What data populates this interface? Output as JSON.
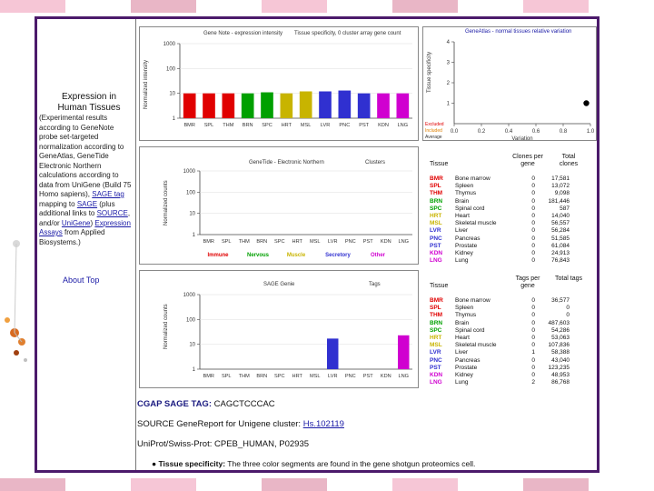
{
  "colors": {
    "frame": "#4b1a6b",
    "band": [
      "#f6c6d6",
      "#ffffff",
      "#e9b6c6",
      "#ffffff"
    ],
    "link": "#1a1aa6"
  },
  "sidebar": {
    "title": "Expression in Human Tissues",
    "text_1": "(Experimental results according to GeneNote probe set-targeted ",
    "text_2": "normalization according to GeneAtlas, ",
    "text_3": "GeneTide Electronic Northern calculations according to data from UniGene (Build 75 Homo sapiens), ",
    "link_sage": "SAGE tag",
    "text_4": " mapping to ",
    "link_sage2": "SAGE",
    "text_5": " (plus additional links to ",
    "link_source": "SOURCE",
    "text_6": ", and/or ",
    "link_unigene": "UniGene",
    "text_7": ") ",
    "link_exp": "Expression Assays",
    "text_8": " from Applied Biosystems.)",
    "about_link": "About Top"
  },
  "panel1": {
    "title": "Gene Note - expression intensity",
    "subtitle": "Tissue specificity, 0 cluster array gene count",
    "ylabel": "Normalized intensity",
    "yticks": [
      "1000",
      "100",
      "10",
      "1"
    ],
    "categories": [
      "BMR",
      "SPL",
      "THM",
      "BRN",
      "SPC",
      "HRT",
      "MSL",
      "LVR",
      "PNC",
      "PST",
      "KDN",
      "LNG"
    ]
  },
  "panel1b": {
    "title": "GeneAtlas - normal tissues relative variation",
    "ylabel": "Tissue specificity",
    "yticks": [
      "4",
      "3",
      "2",
      "1"
    ],
    "xticks": [
      "0.0",
      "0.2",
      "0.4",
      "0.6",
      "0.8",
      "1.0"
    ],
    "xlabel": "Variation",
    "legend": [
      "Excluded",
      "Included",
      "Average"
    ]
  },
  "panel2": {
    "title": "GeneTide - Electronic Northern",
    "subtitle": "Clusters",
    "ylabel": "Normalized counts",
    "yticks": [
      "1000",
      "100",
      "10",
      "1"
    ],
    "categories": [
      "BMR",
      "SPL",
      "THM",
      "BRN",
      "SPC",
      "HRT",
      "MSL",
      "LVR",
      "PNC",
      "PST",
      "KDN",
      "LNG"
    ],
    "groups": [
      {
        "label": "Immune",
        "color": "#e00000"
      },
      {
        "label": "Nervous",
        "color": "#00a000"
      },
      {
        "label": "Muscle",
        "color": "#c8b400"
      },
      {
        "label": "Secretory",
        "color": "#3030d0"
      },
      {
        "label": "Other",
        "color": "#d000d0"
      }
    ]
  },
  "table1": {
    "col_tissue": "Tissue",
    "col_clones": "Clones per gene",
    "col_total": "Total clones",
    "rows": [
      {
        "code": "BMR",
        "name": "Bone marrow",
        "v1": "0",
        "v2": "17,581",
        "color": "#e00000"
      },
      {
        "code": "SPL",
        "name": "Spleen",
        "v1": "0",
        "v2": "13,072",
        "color": "#e00000"
      },
      {
        "code": "THM",
        "name": "Thymus",
        "v1": "0",
        "v2": "9,098",
        "color": "#e00000"
      },
      {
        "code": "BRN",
        "name": "Brain",
        "v1": "0",
        "v2": "181,446",
        "color": "#00a000"
      },
      {
        "code": "SPC",
        "name": "Spinal cord",
        "v1": "0",
        "v2": "587",
        "color": "#00a000"
      },
      {
        "code": "HRT",
        "name": "Heart",
        "v1": "0",
        "v2": "14,040",
        "color": "#c8b400"
      },
      {
        "code": "MSL",
        "name": "Skeletal muscle",
        "v1": "0",
        "v2": "56,557",
        "color": "#c8b400"
      },
      {
        "code": "LVR",
        "name": "Liver",
        "v1": "0",
        "v2": "56,284",
        "color": "#3030d0"
      },
      {
        "code": "PNC",
        "name": "Pancreas",
        "v1": "0",
        "v2": "51,585",
        "color": "#3030d0"
      },
      {
        "code": "PST",
        "name": "Prostate",
        "v1": "0",
        "v2": "61,084",
        "color": "#3030d0"
      },
      {
        "code": "KDN",
        "name": "Kidney",
        "v1": "0",
        "v2": "24,913",
        "color": "#d000d0"
      },
      {
        "code": "LNG",
        "name": "Lung",
        "v1": "0",
        "v2": "76,843",
        "color": "#d000d0"
      }
    ]
  },
  "panel3": {
    "title": "SAGE Genie",
    "subtitle": "Tags",
    "ylabel": "Normalized counts",
    "yticks": [
      "1000",
      "100",
      "10",
      "1"
    ],
    "categories": [
      "BMR",
      "SPL",
      "THM",
      "BRN",
      "SPC",
      "HRT",
      "MSL",
      "LVR",
      "PNC",
      "PST",
      "KDN",
      "LNG"
    ]
  },
  "table2": {
    "col_tissue": "Tissue",
    "col_tags": "Tags per gene",
    "col_total": "Total tags",
    "rows": [
      {
        "code": "BMR",
        "name": "Bone marrow",
        "v1": "0",
        "v2": "36,577",
        "color": "#e00000"
      },
      {
        "code": "SPL",
        "name": "Spleen",
        "v1": "0",
        "v2": "0",
        "color": "#e00000"
      },
      {
        "code": "THM",
        "name": "Thymus",
        "v1": "0",
        "v2": "0",
        "color": "#e00000"
      },
      {
        "code": "BRN",
        "name": "Brain",
        "v1": "0",
        "v2": "487,603",
        "color": "#00a000"
      },
      {
        "code": "SPC",
        "name": "Spinal cord",
        "v1": "0",
        "v2": "54,286",
        "color": "#00a000"
      },
      {
        "code": "HRT",
        "name": "Heart",
        "v1": "0",
        "v2": "53,063",
        "color": "#c8b400"
      },
      {
        "code": "MSL",
        "name": "Skeletal muscle",
        "v1": "0",
        "v2": "107,836",
        "color": "#c8b400"
      },
      {
        "code": "LVR",
        "name": "Liver",
        "v1": "1",
        "v2": "58,388",
        "color": "#3030d0"
      },
      {
        "code": "PNC",
        "name": "Pancreas",
        "v1": "0",
        "v2": "43,040",
        "color": "#3030d0"
      },
      {
        "code": "PST",
        "name": "Prostate",
        "v1": "0",
        "v2": "123,235",
        "color": "#3030d0"
      },
      {
        "code": "KDN",
        "name": "Kidney",
        "v1": "0",
        "v2": "48,953",
        "color": "#d000d0"
      },
      {
        "code": "LNG",
        "name": "Lung",
        "v1": "2",
        "v2": "86,768",
        "color": "#d000d0"
      }
    ]
  },
  "bottom": {
    "sage_label": "CGAP SAGE TAG:",
    "sage_value": "CAGCTCCCAC",
    "source_label": "SOURCE GeneReport for Unigene cluster:",
    "source_link": "Hs.102119",
    "uniprot_label": "UniProt/Swiss-Prot:",
    "uniprot_value": "CPEB_HUMAN, P02935",
    "specificity_label": "Tissue specificity:",
    "specificity_text": "The three color segments are found in the gene shotgun proteomics cell."
  },
  "chart_data": [
    {
      "type": "bar",
      "title": "Gene Note - expression intensity",
      "ylabel": "Normalized intensity",
      "categories": [
        "BMR",
        "SPL",
        "THM",
        "BRN",
        "SPC",
        "HRT",
        "MSL",
        "LVR",
        "PNC",
        "PST",
        "KDN",
        "LNG"
      ],
      "values": [
        10,
        10,
        10,
        10,
        11,
        10,
        12,
        12,
        13,
        10,
        10,
        10
      ],
      "colors": [
        "#e00000",
        "#e00000",
        "#e00000",
        "#00a000",
        "#00a000",
        "#c8b400",
        "#c8b400",
        "#3030d0",
        "#3030d0",
        "#3030d0",
        "#d000d0",
        "#d000d0"
      ],
      "ylim": [
        1,
        1000
      ],
      "yscale": "log"
    },
    {
      "type": "scatter",
      "title": "GeneAtlas - normal tissues relative variation",
      "xlabel": "Variation",
      "ylabel": "Tissue specificity",
      "x": [
        0.97
      ],
      "y": [
        1.0
      ],
      "xlim": [
        0,
        1
      ],
      "ylim": [
        0,
        4
      ]
    },
    {
      "type": "bar",
      "title": "GeneTide - Electronic Northern",
      "ylabel": "Normalized counts",
      "categories": [
        "BMR",
        "SPL",
        "THM",
        "BRN",
        "SPC",
        "HRT",
        "MSL",
        "LVR",
        "PNC",
        "PST",
        "KDN",
        "LNG"
      ],
      "values": [
        0,
        0,
        0,
        0,
        0,
        0,
        0,
        0,
        0,
        0,
        0,
        0
      ],
      "ylim": [
        1,
        1000
      ],
      "yscale": "log"
    },
    {
      "type": "bar",
      "title": "SAGE Genie",
      "ylabel": "Normalized counts",
      "categories": [
        "BMR",
        "SPL",
        "THM",
        "BRN",
        "SPC",
        "HRT",
        "MSL",
        "LVR",
        "PNC",
        "PST",
        "KDN",
        "LNG"
      ],
      "values": [
        0,
        0,
        0,
        0,
        0,
        0,
        0,
        17,
        0,
        0,
        0,
        23
      ],
      "colors": [
        "#e00000",
        "#e00000",
        "#e00000",
        "#00a000",
        "#00a000",
        "#c8b400",
        "#c8b400",
        "#3030d0",
        "#3030d0",
        "#3030d0",
        "#d000d0",
        "#d000d0"
      ],
      "ylim": [
        1,
        1000
      ],
      "yscale": "log"
    }
  ]
}
